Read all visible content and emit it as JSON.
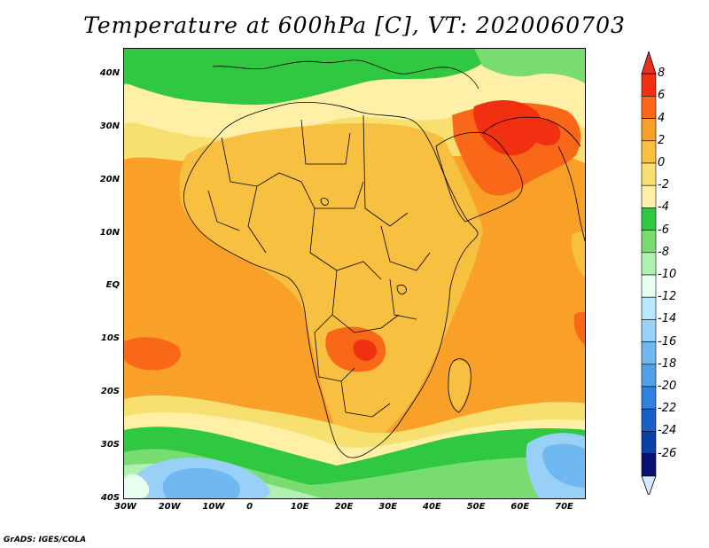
{
  "title": "Temperature at 600hPa [C], VT: 2020060703",
  "credit": "GrADS: IGES/COLA",
  "axes": {
    "lon_ticks": [
      "30W",
      "20W",
      "10W",
      "0",
      "10E",
      "20E",
      "30E",
      "40E",
      "50E",
      "60E",
      "70E"
    ],
    "lat_ticks": [
      "40N",
      "30N",
      "20N",
      "10N",
      "EQ",
      "10S",
      "20S",
      "30S",
      "40S"
    ],
    "lon_range": [
      -30,
      75
    ],
    "lat_range": [
      -40,
      45
    ]
  },
  "colorbar": {
    "labels": [
      "8",
      "6",
      "4",
      "2",
      "0",
      "-2",
      "-4",
      "-6",
      "-8",
      "-10",
      "-12",
      "-14",
      "-16",
      "-18",
      "-20",
      "-22",
      "-24",
      "-26"
    ],
    "colors": [
      "#f03010",
      "#f86818",
      "#f8a028",
      "#f8c040",
      "#f8e070",
      "#fff0a8",
      "#30c840",
      "#78dc70",
      "#b0f0b0",
      "#e8fff0",
      "#b8e8ff",
      "#98d0f8",
      "#70b8f0",
      "#50a0e8",
      "#3080e0",
      "#1860c8",
      "#0c40a8",
      "#081070"
    ],
    "top_color": "#e83020",
    "bottom_color": "#d8e8ff"
  },
  "colors": {
    "ocean_warm": "#f8a028",
    "land_warm": "#f8c040",
    "hot": "#f86818",
    "very_hot": "#f03010",
    "mild": "#f8e070",
    "cool": "#fff0a8",
    "green": "#30c840",
    "light_green": "#78dc70",
    "pale_green": "#b0f0b0",
    "cold_blue": "#70b8f0",
    "cold_light": "#b8e8ff"
  }
}
